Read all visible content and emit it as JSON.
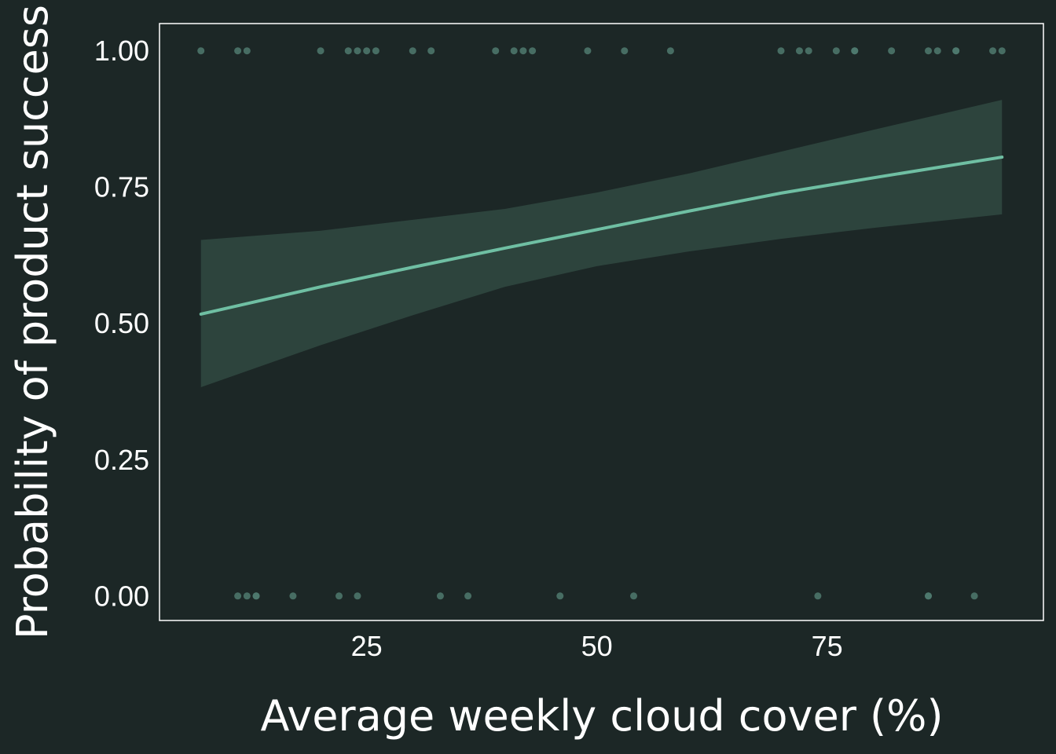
{
  "colors": {
    "background": "#1c2726",
    "frame": "#ffffff",
    "line": "#6fbfa3",
    "ribbon": "#2d443d",
    "points": "#4f7a6e",
    "text": "#ffffff"
  },
  "chart_data": {
    "type": "scatter",
    "title": "",
    "xlabel": "Average weekly cloud cover (%)",
    "ylabel": "Probability of product success",
    "xlim": [
      2.5,
      98.5
    ],
    "ylim": [
      -0.045,
      1.05
    ],
    "x_ticks": [
      25,
      50,
      75
    ],
    "x_tick_labels": [
      "25",
      "50",
      "75"
    ],
    "y_ticks": [
      0,
      0.25,
      0.5,
      0.75,
      1
    ],
    "y_tick_labels": [
      "0.00",
      "0.25",
      "0.50",
      "0.75",
      "1.00"
    ],
    "grid": false,
    "legend": "none",
    "series": [
      {
        "type": "scatter",
        "x": [
          7,
          11,
          12,
          20,
          23,
          24,
          25,
          26,
          30,
          32,
          39,
          41,
          42,
          43,
          49,
          53,
          58,
          70,
          72,
          73,
          76,
          78,
          78,
          82,
          86,
          87,
          89,
          89,
          93,
          94,
          11,
          12,
          13,
          13,
          17,
          22,
          24,
          33,
          36,
          46,
          54,
          74,
          86,
          86,
          91
        ],
        "y": [
          1,
          1,
          1,
          1,
          1,
          1,
          1,
          1,
          1,
          1,
          1,
          1,
          1,
          1,
          1,
          1,
          1,
          1,
          1,
          1,
          1,
          1,
          1,
          1,
          1,
          1,
          1,
          1,
          1,
          1,
          0,
          0,
          0,
          0,
          0,
          0,
          0,
          0,
          0,
          0,
          0,
          0,
          0,
          0,
          0
        ]
      },
      {
        "type": "line",
        "x": [
          7,
          20,
          30,
          40,
          50,
          60,
          70,
          80,
          94
        ],
        "y": [
          0.517,
          0.567,
          0.603,
          0.638,
          0.672,
          0.706,
          0.739,
          0.767,
          0.805
        ]
      },
      {
        "type": "area",
        "x": [
          7,
          20,
          30,
          40,
          50,
          60,
          70,
          80,
          94
        ],
        "y_lower": [
          0.383,
          0.46,
          0.515,
          0.567,
          0.605,
          0.632,
          0.655,
          0.675,
          0.7
        ],
        "y_upper": [
          0.653,
          0.67,
          0.69,
          0.71,
          0.74,
          0.775,
          0.815,
          0.855,
          0.91
        ]
      }
    ]
  }
}
